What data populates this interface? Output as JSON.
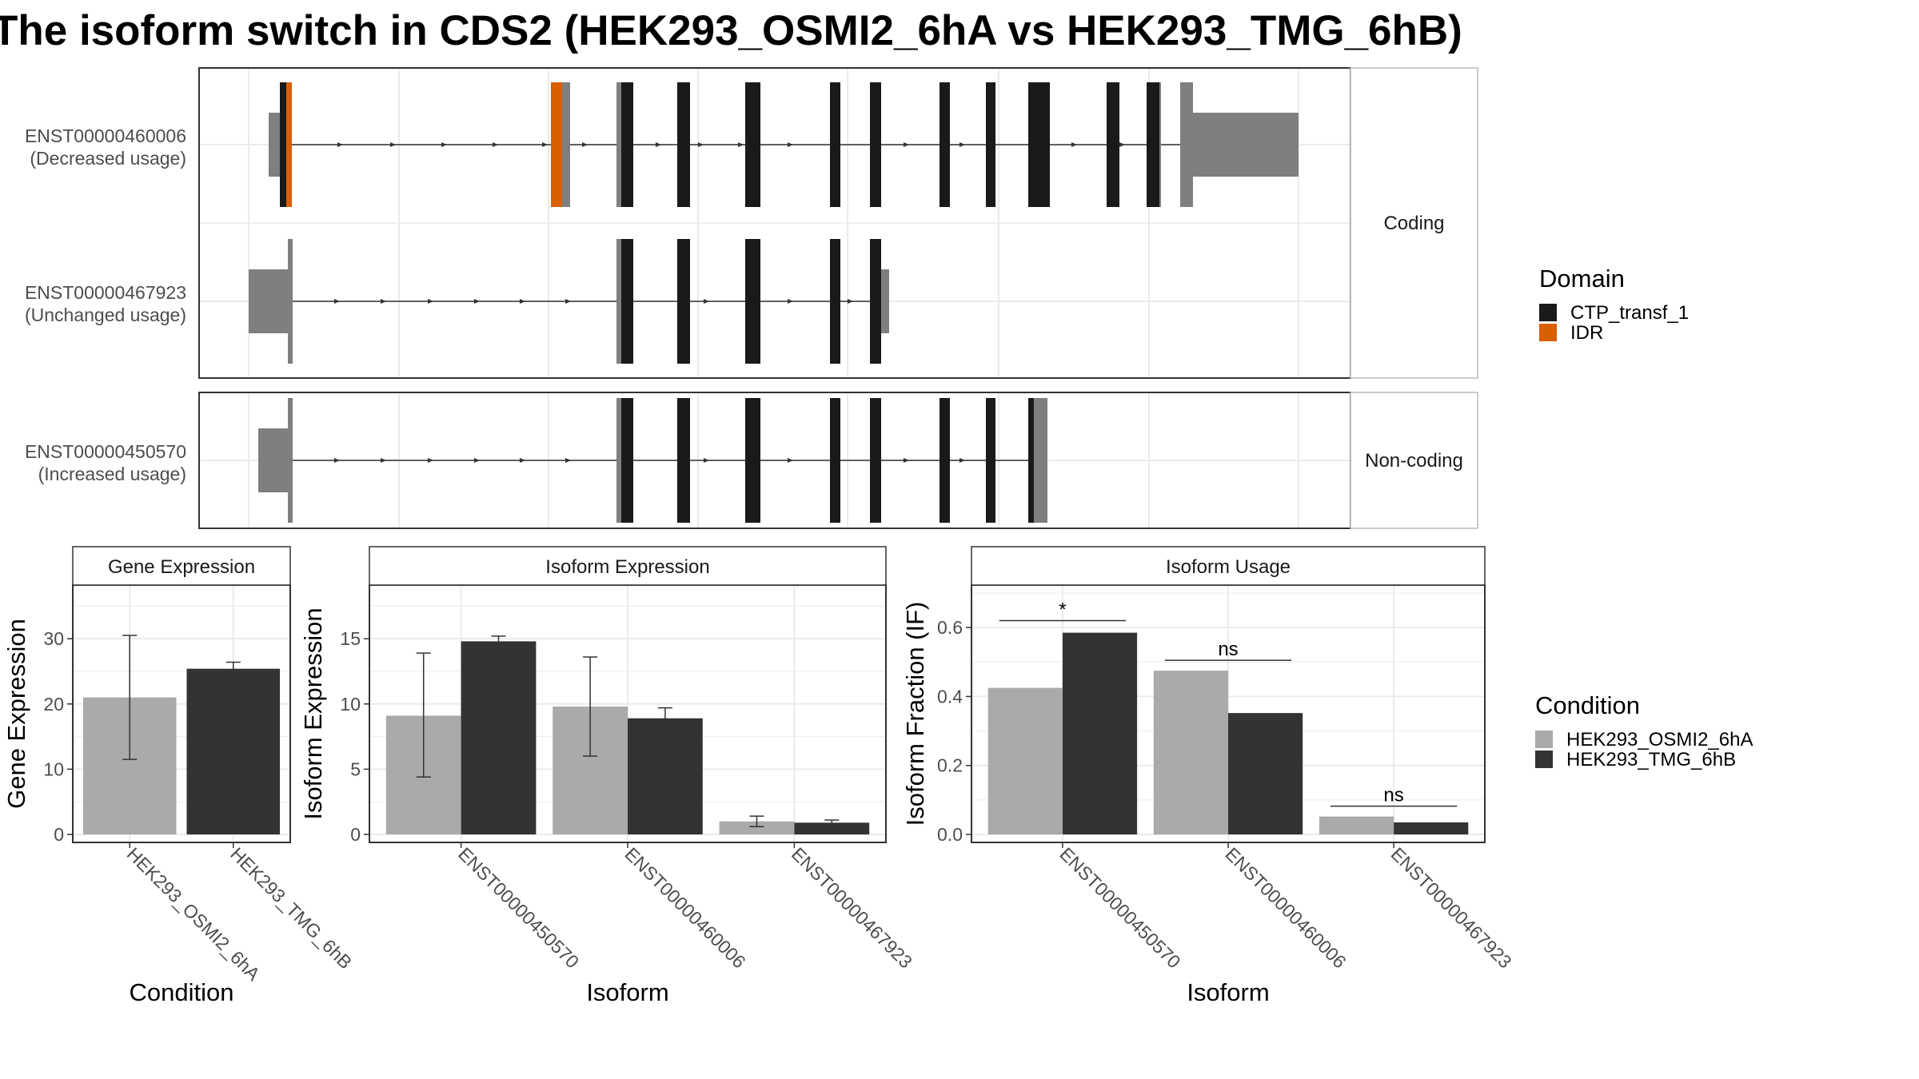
{
  "title": "The isoform switch in CDS2 (HEK293_OSMI2_6hA vs HEK293_TMG_6hB)",
  "colors": {
    "panel_border": "#333333",
    "grid": "#ebebeb",
    "strip_fill": "#ffffff",
    "utr": "#7f7f7f",
    "CTP_transf_1": "#1a1a1a",
    "IDR": "#d95f02",
    "cond_a": "#aaaaaa",
    "cond_b": "#333333"
  },
  "transcript_panel": {
    "facets": [
      {
        "label": "Coding",
        "rows": [
          {
            "id": "ENST00000460006",
            "usage": "(Decreased usage)"
          },
          {
            "id": "ENST00000467923",
            "usage": "(Unchanged usage)"
          }
        ]
      },
      {
        "label": "Non-coding",
        "rows": [
          {
            "id": "ENST00000450570",
            "usage": "(Increased usage)"
          }
        ]
      }
    ],
    "legend": {
      "title": "Domain",
      "items": [
        {
          "name": "CTP_transf_1",
          "color": "#1a1a1a"
        },
        {
          "name": "IDR",
          "color": "#d95f02"
        }
      ]
    }
  },
  "condition_legend": {
    "title": "Condition",
    "items": [
      {
        "name": "HEK293_OSMI2_6hA",
        "color": "#aaaaaa"
      },
      {
        "name": "HEK293_TMG_6hB",
        "color": "#333333"
      }
    ]
  },
  "chart_data": [
    {
      "type": "bar",
      "title": "Gene Expression",
      "xlabel": "Condition",
      "ylabel": "Gene Expression",
      "ylim": [
        0,
        37
      ],
      "yticks": [
        0,
        10,
        20,
        30
      ],
      "categories": [
        "HEK293_OSMI2_6hA",
        "HEK293_TMG_6hB"
      ],
      "values": [
        21.0,
        25.4
      ],
      "errors": [
        [
          11.5,
          30.5
        ],
        [
          24.4,
          26.4
        ]
      ]
    },
    {
      "type": "bar",
      "title": "Isoform Expression",
      "xlabel": "Isoform",
      "ylabel": "Isoform Expression",
      "ylim": [
        0,
        18.5
      ],
      "yticks": [
        0,
        5,
        10,
        15
      ],
      "categories": [
        "ENST00000450570",
        "ENST00000460006",
        "ENST00000467923"
      ],
      "series": [
        {
          "name": "HEK293_OSMI2_6hA",
          "values": [
            9.1,
            9.8,
            1.0
          ],
          "errors": [
            [
              4.4,
              13.9
            ],
            [
              6.0,
              13.6
            ],
            [
              0.6,
              1.4
            ]
          ]
        },
        {
          "name": "HEK293_TMG_6hB",
          "values": [
            14.8,
            8.9,
            0.9
          ],
          "errors": [
            [
              14.4,
              15.2
            ],
            [
              8.1,
              9.7
            ],
            [
              0.7,
              1.1
            ]
          ]
        }
      ]
    },
    {
      "type": "bar",
      "title": "Isoform Usage",
      "xlabel": "Isoform",
      "ylabel": "Isoform Fraction (IF)",
      "ylim": [
        0,
        0.7
      ],
      "yticks": [
        0.0,
        0.2,
        0.4,
        0.6
      ],
      "tick_format": 1,
      "categories": [
        "ENST00000450570",
        "ENST00000460006",
        "ENST00000467923"
      ],
      "series": [
        {
          "name": "HEK293_OSMI2_6hA",
          "values": [
            0.425,
            0.475,
            0.052
          ]
        },
        {
          "name": "HEK293_TMG_6hB",
          "values": [
            0.585,
            0.352,
            0.035
          ]
        }
      ],
      "significance": [
        {
          "label": "*",
          "y": 0.62
        },
        {
          "label": "ns",
          "y": 0.505
        },
        {
          "label": "ns",
          "y": 0.082
        }
      ]
    }
  ]
}
